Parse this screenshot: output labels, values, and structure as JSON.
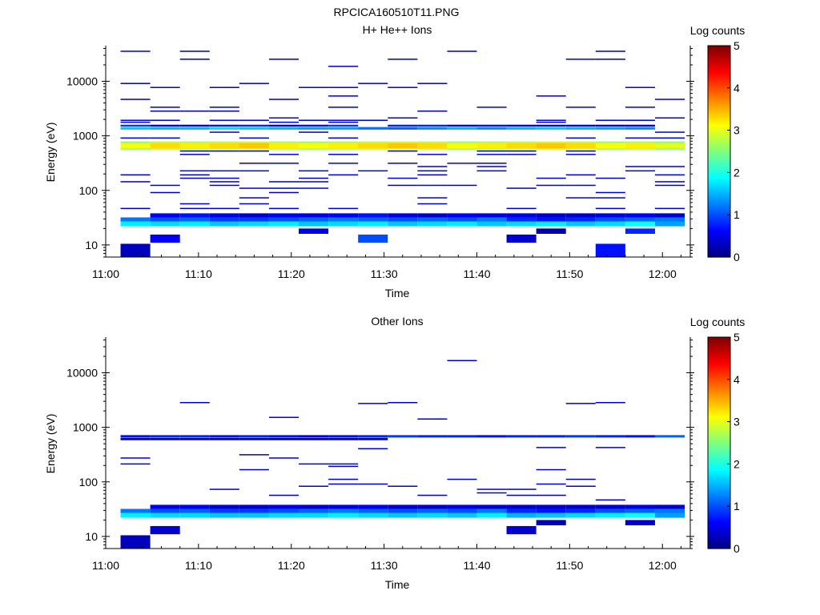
{
  "figure_title": "RPCICA160510T11.PNG",
  "chart_data": [
    {
      "type": "heatmap",
      "title": "H+ He++ Ions",
      "xlabel": "Time",
      "ylabel": "Energy (eV)",
      "colorbar_label": "Log counts",
      "x_tick_labels": [
        "11:00",
        "11:10",
        "11:20",
        "11:30",
        "11:40",
        "11:50",
        "12:00"
      ],
      "x_ticks_minutes": [
        0,
        10,
        20,
        30,
        40,
        50,
        60
      ],
      "xlim_minutes": [
        0,
        63
      ],
      "y_scale": "log",
      "ylim": [
        6,
        45000
      ],
      "y_tick_labels": [
        "10",
        "100",
        "1000",
        "10000"
      ],
      "y_ticks": [
        10,
        100,
        1000,
        10000
      ],
      "colorbar_ticks": [
        "0",
        "1",
        "2",
        "3",
        "4",
        "5"
      ],
      "clim": [
        0,
        5
      ],
      "colormap": "jet",
      "time_bins_minutes": [
        1.6,
        4.8,
        8.0,
        11.2,
        14.4,
        17.6,
        20.8,
        24.0,
        27.2,
        30.4,
        33.6,
        36.8,
        40.0,
        43.2,
        46.4,
        49.6,
        52.8,
        56.0,
        59.2,
        62.4
      ],
      "bands": [
        {
          "e": [
            560,
            790
          ],
          "v": [
            2.5,
            2.8,
            2.7,
            2.8,
            2.9,
            2.7,
            2.6,
            2.7,
            2.8,
            2.9,
            2.8,
            2.6,
            2.7,
            2.8,
            2.9,
            2.8,
            2.6,
            2.7,
            2.5
          ]
        },
        {
          "e": [
            590,
            740
          ],
          "v": [
            3.1,
            3.3,
            3.2,
            3.3,
            3.4,
            3.2,
            3.1,
            3.2,
            3.3,
            3.4,
            3.3,
            3.1,
            3.2,
            3.3,
            3.4,
            3.3,
            3.1,
            3.2,
            3.0
          ]
        },
        {
          "e": [
            22,
            27
          ],
          "v": [
            1.8,
            1.7,
            1.8,
            1.6,
            1.7,
            1.8,
            1.6,
            1.7,
            1.8,
            1.6,
            1.7,
            1.8,
            1.6,
            1.7,
            1.8,
            1.6,
            1.7,
            1.9,
            1.4,
            1.2
          ]
        },
        {
          "e": [
            27,
            32
          ],
          "v": [
            1.2,
            1.0,
            1.1,
            0.9,
            0.9,
            1.0,
            1.1,
            1.2,
            1.1,
            1.0,
            1.1,
            1.0,
            1.2,
            0.8,
            0.7,
            0.8,
            1.0,
            1.1,
            1.2,
            0.9
          ]
        },
        {
          "e": [
            32,
            38
          ],
          "v": [
            null,
            0.6,
            0.7,
            0.5,
            0.4,
            0.6,
            0.5,
            0.6,
            0.7,
            0.5,
            0.4,
            0.6,
            0.5,
            0.5,
            0.4,
            0.4,
            0.5,
            0.6,
            0.4,
            0.5
          ]
        },
        {
          "e": [
            1300,
            1450
          ],
          "v": [
            1.6,
            1.5,
            1.5,
            1.7,
            1.6,
            1.5,
            1.4,
            1.4,
            1.2,
            1.1,
            1.3,
            1.5,
            1.3,
            1.5,
            1.6,
            1.5,
            1.4,
            1.3,
            null
          ]
        },
        {
          "e": [
            1480,
            1600
          ],
          "v": [
            0.9,
            0.6,
            0.5,
            0.7,
            0.8,
            0.6,
            0.7,
            0.9,
            null,
            0.8,
            0.8,
            0.5,
            0.7,
            0.6,
            0.5,
            0.6,
            0.5,
            0.6,
            null
          ]
        }
      ],
      "single_bins": [
        {
          "t": 0,
          "e": [
            6,
            10.5
          ],
          "v": 0.3
        },
        {
          "t": 1,
          "e": [
            11,
            15.5
          ],
          "v": 0.6
        },
        {
          "t": 8,
          "e": [
            11,
            15.5
          ],
          "v": 1.0
        },
        {
          "t": 13,
          "e": [
            11,
            15.5
          ],
          "v": 0.4
        },
        {
          "t": 16,
          "e": [
            6,
            10.5
          ],
          "v": 0.7
        },
        {
          "t": 6,
          "e": [
            16,
            20
          ],
          "v": 0.5
        },
        {
          "t": 14,
          "e": [
            16,
            20
          ],
          "v": 0.2
        },
        {
          "t": 17,
          "e": [
            16,
            20
          ],
          "v": 0.8
        }
      ],
      "sparse_energies": [
        9000,
        7600,
        5300,
        4600,
        3300,
        2800,
        2100,
        1900,
        1750,
        1150,
        900,
        520,
        450,
        310,
        270,
        225,
        190,
        165,
        142,
        122,
        108,
        90,
        72,
        56,
        46,
        18500,
        25000,
        35000
      ],
      "sparse_density": 0.3,
      "sparse_value": 0.3
    },
    {
      "type": "heatmap",
      "title": "Other Ions",
      "xlabel": "Time",
      "ylabel": "Energy (eV)",
      "colorbar_label": "Log counts",
      "x_tick_labels": [
        "11:00",
        "11:10",
        "11:20",
        "11:30",
        "11:40",
        "11:50",
        "12:00"
      ],
      "x_ticks_minutes": [
        0,
        10,
        20,
        30,
        40,
        50,
        60
      ],
      "xlim_minutes": [
        0,
        63
      ],
      "y_scale": "log",
      "ylim": [
        6,
        45000
      ],
      "y_tick_labels": [
        "10",
        "100",
        "1000",
        "10000"
      ],
      "y_ticks": [
        10,
        100,
        1000,
        10000
      ],
      "colorbar_ticks": [
        "0",
        "1",
        "2",
        "3",
        "4",
        "5"
      ],
      "clim": [
        0,
        5
      ],
      "colormap": "jet",
      "time_bins_minutes": [
        1.6,
        4.8,
        8.0,
        11.2,
        14.4,
        17.6,
        20.8,
        24.0,
        27.2,
        30.4,
        33.6,
        36.8,
        40.0,
        43.2,
        46.4,
        49.6,
        52.8,
        56.0,
        59.2,
        62.4
      ],
      "bands": [
        {
          "e": [
            650,
            720
          ],
          "v": [
            0.7,
            0.8,
            0.8,
            0.7,
            0.8,
            0.7,
            0.6,
            0.7,
            0.8,
            0.9,
            0.8,
            0.8,
            0.7,
            0.8,
            0.8,
            0.9,
            0.8,
            0.7,
            1.1
          ]
        },
        {
          "e": [
            580,
            640
          ],
          "v": [
            0.4,
            0.4,
            0.5,
            0.4,
            0.5,
            0.3,
            0.3,
            0.4,
            0.5,
            null,
            null,
            null,
            null,
            null,
            null,
            null,
            null,
            null,
            null
          ]
        },
        {
          "e": [
            22,
            27
          ],
          "v": [
            1.8,
            1.7,
            1.7,
            1.6,
            1.6,
            1.7,
            1.7,
            1.8,
            1.7,
            1.6,
            1.7,
            1.6,
            1.8,
            1.5,
            1.6,
            1.7,
            1.8,
            1.9,
            1.4,
            1.2
          ]
        },
        {
          "e": [
            27,
            32
          ],
          "v": [
            1.2,
            1.0,
            1.1,
            0.9,
            0.9,
            1.0,
            1.1,
            1.2,
            1.1,
            1.0,
            1.1,
            1.0,
            1.2,
            0.8,
            0.7,
            0.8,
            1.0,
            1.1,
            1.2,
            0.9
          ]
        },
        {
          "e": [
            32,
            38
          ],
          "v": [
            null,
            0.5,
            0.6,
            0.4,
            0.4,
            0.5,
            0.4,
            0.5,
            0.6,
            0.4,
            0.4,
            0.5,
            0.4,
            0.4,
            0.4,
            0.4,
            0.4,
            0.5,
            0.4,
            0.5
          ]
        }
      ],
      "single_bins": [
        {
          "t": 0,
          "e": [
            6,
            10.5
          ],
          "v": 0.3
        },
        {
          "t": 1,
          "e": [
            11,
            15.5
          ],
          "v": 0.4
        },
        {
          "t": 13,
          "e": [
            11,
            15.5
          ],
          "v": 0.4
        },
        {
          "t": 14,
          "e": [
            16,
            20
          ],
          "v": 0.3
        },
        {
          "t": 17,
          "e": [
            16,
            20
          ],
          "v": 0.4
        }
      ],
      "sparse_energies": [
        2800,
        2700,
        1500,
        1400,
        420,
        400,
        310,
        270,
        240,
        210,
        190,
        165,
        110,
        90,
        82,
        72,
        62,
        56,
        46,
        16500
      ],
      "sparse_density": 0.13,
      "sparse_value": 0.3
    }
  ]
}
